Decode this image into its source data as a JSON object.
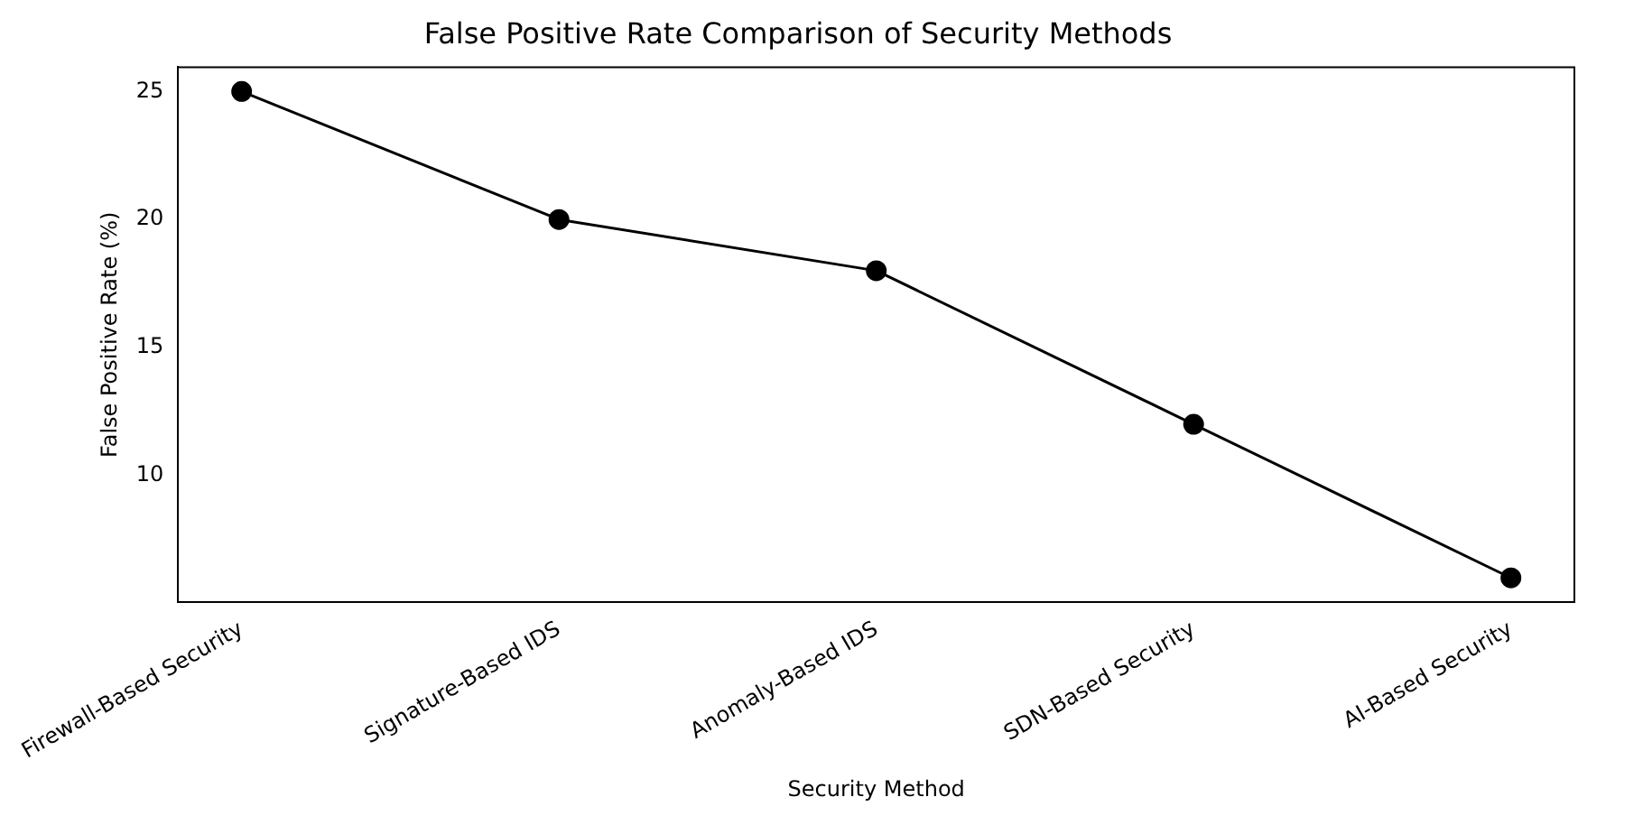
{
  "chart_data": {
    "type": "line",
    "title": "False Positive Rate Comparison of Security Methods",
    "xlabel": "Security Method",
    "ylabel": "False Positive Rate (%)",
    "categories": [
      "Firewall-Based Security",
      "Signature-Based IDS",
      "Anomaly-Based IDS",
      "SDN-Based Security",
      "AI-Based Security"
    ],
    "series": [
      {
        "color": "#000000",
        "values": [
          25,
          20,
          18,
          12,
          6
        ]
      }
    ],
    "ylim": [
      5.05,
      25.95
    ],
    "yticks": [
      10,
      15,
      20,
      25
    ],
    "grid": false,
    "legend": false,
    "marker": "circle",
    "line_style": "solid"
  }
}
